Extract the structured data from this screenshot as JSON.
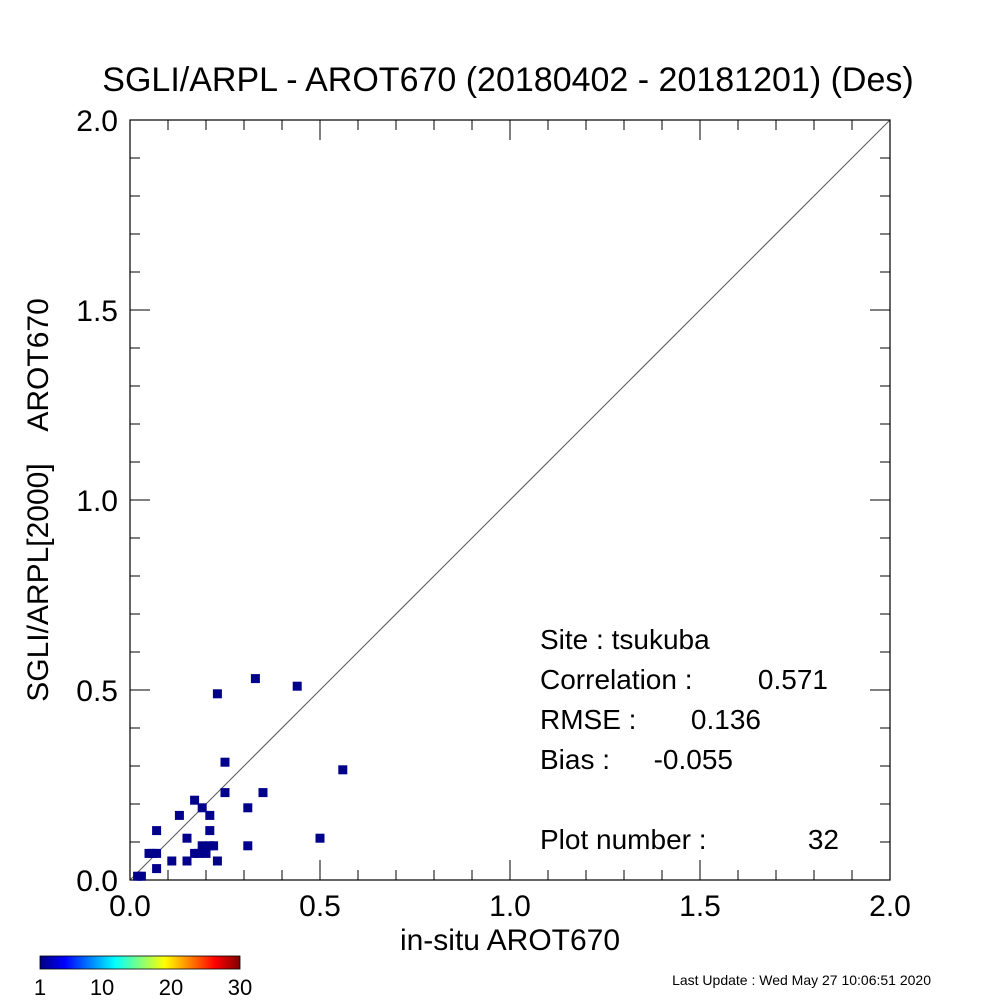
{
  "chart_data": {
    "type": "scatter",
    "title": "SGLI/ARPL - AROT670 (20180402 - 20181201) (Des)",
    "xlabel": "in-situ AROT670",
    "ylabel": "SGLI/ARPL[2000]    AROT670",
    "xlim": [
      0.0,
      2.0
    ],
    "ylim": [
      0.0,
      2.0
    ],
    "x_ticks": [
      "0.0",
      "0.5",
      "1.0",
      "1.5",
      "2.0"
    ],
    "y_ticks": [
      "0.0",
      "0.5",
      "1.0",
      "1.5",
      "2.0"
    ],
    "grid": false,
    "reference_line": "1:1",
    "point_color": "#00008b",
    "points": [
      {
        "x": 0.02,
        "y": 0.01
      },
      {
        "x": 0.03,
        "y": 0.01
      },
      {
        "x": 0.05,
        "y": 0.07
      },
      {
        "x": 0.06,
        "y": 0.07
      },
      {
        "x": 0.07,
        "y": 0.07
      },
      {
        "x": 0.07,
        "y": 0.03
      },
      {
        "x": 0.07,
        "y": 0.13
      },
      {
        "x": 0.11,
        "y": 0.05
      },
      {
        "x": 0.13,
        "y": 0.17
      },
      {
        "x": 0.15,
        "y": 0.05
      },
      {
        "x": 0.15,
        "y": 0.11
      },
      {
        "x": 0.17,
        "y": 0.21
      },
      {
        "x": 0.17,
        "y": 0.07
      },
      {
        "x": 0.18,
        "y": 0.07
      },
      {
        "x": 0.19,
        "y": 0.09
      },
      {
        "x": 0.19,
        "y": 0.19
      },
      {
        "x": 0.2,
        "y": 0.07
      },
      {
        "x": 0.21,
        "y": 0.09
      },
      {
        "x": 0.21,
        "y": 0.13
      },
      {
        "x": 0.21,
        "y": 0.17
      },
      {
        "x": 0.22,
        "y": 0.09
      },
      {
        "x": 0.23,
        "y": 0.05
      },
      {
        "x": 0.23,
        "y": 0.49
      },
      {
        "x": 0.25,
        "y": 0.23
      },
      {
        "x": 0.25,
        "y": 0.31
      },
      {
        "x": 0.31,
        "y": 0.09
      },
      {
        "x": 0.31,
        "y": 0.19
      },
      {
        "x": 0.33,
        "y": 0.53
      },
      {
        "x": 0.35,
        "y": 0.23
      },
      {
        "x": 0.44,
        "y": 0.51
      },
      {
        "x": 0.5,
        "y": 0.11
      },
      {
        "x": 0.56,
        "y": 0.29
      }
    ],
    "stats": {
      "site_label": "Site : tsukuba",
      "correlation_label": "Correlation :",
      "correlation_value": "0.571",
      "rmse_label": "RMSE :",
      "rmse_value": "0.136",
      "bias_label": "Bias :",
      "bias_value": "-0.055",
      "plot_number_label": "Plot number :",
      "plot_number_value": "32"
    },
    "colorbar": {
      "ticks": [
        "1",
        "10",
        "20",
        "30"
      ],
      "colors": [
        "#00007f",
        "#0000ff",
        "#0080ff",
        "#00ffff",
        "#80ff80",
        "#ffff00",
        "#ff8000",
        "#ff0000",
        "#7f0000"
      ]
    }
  },
  "footer": {
    "last_update": "Last Update : Wed May 27 10:06:51 2020"
  }
}
